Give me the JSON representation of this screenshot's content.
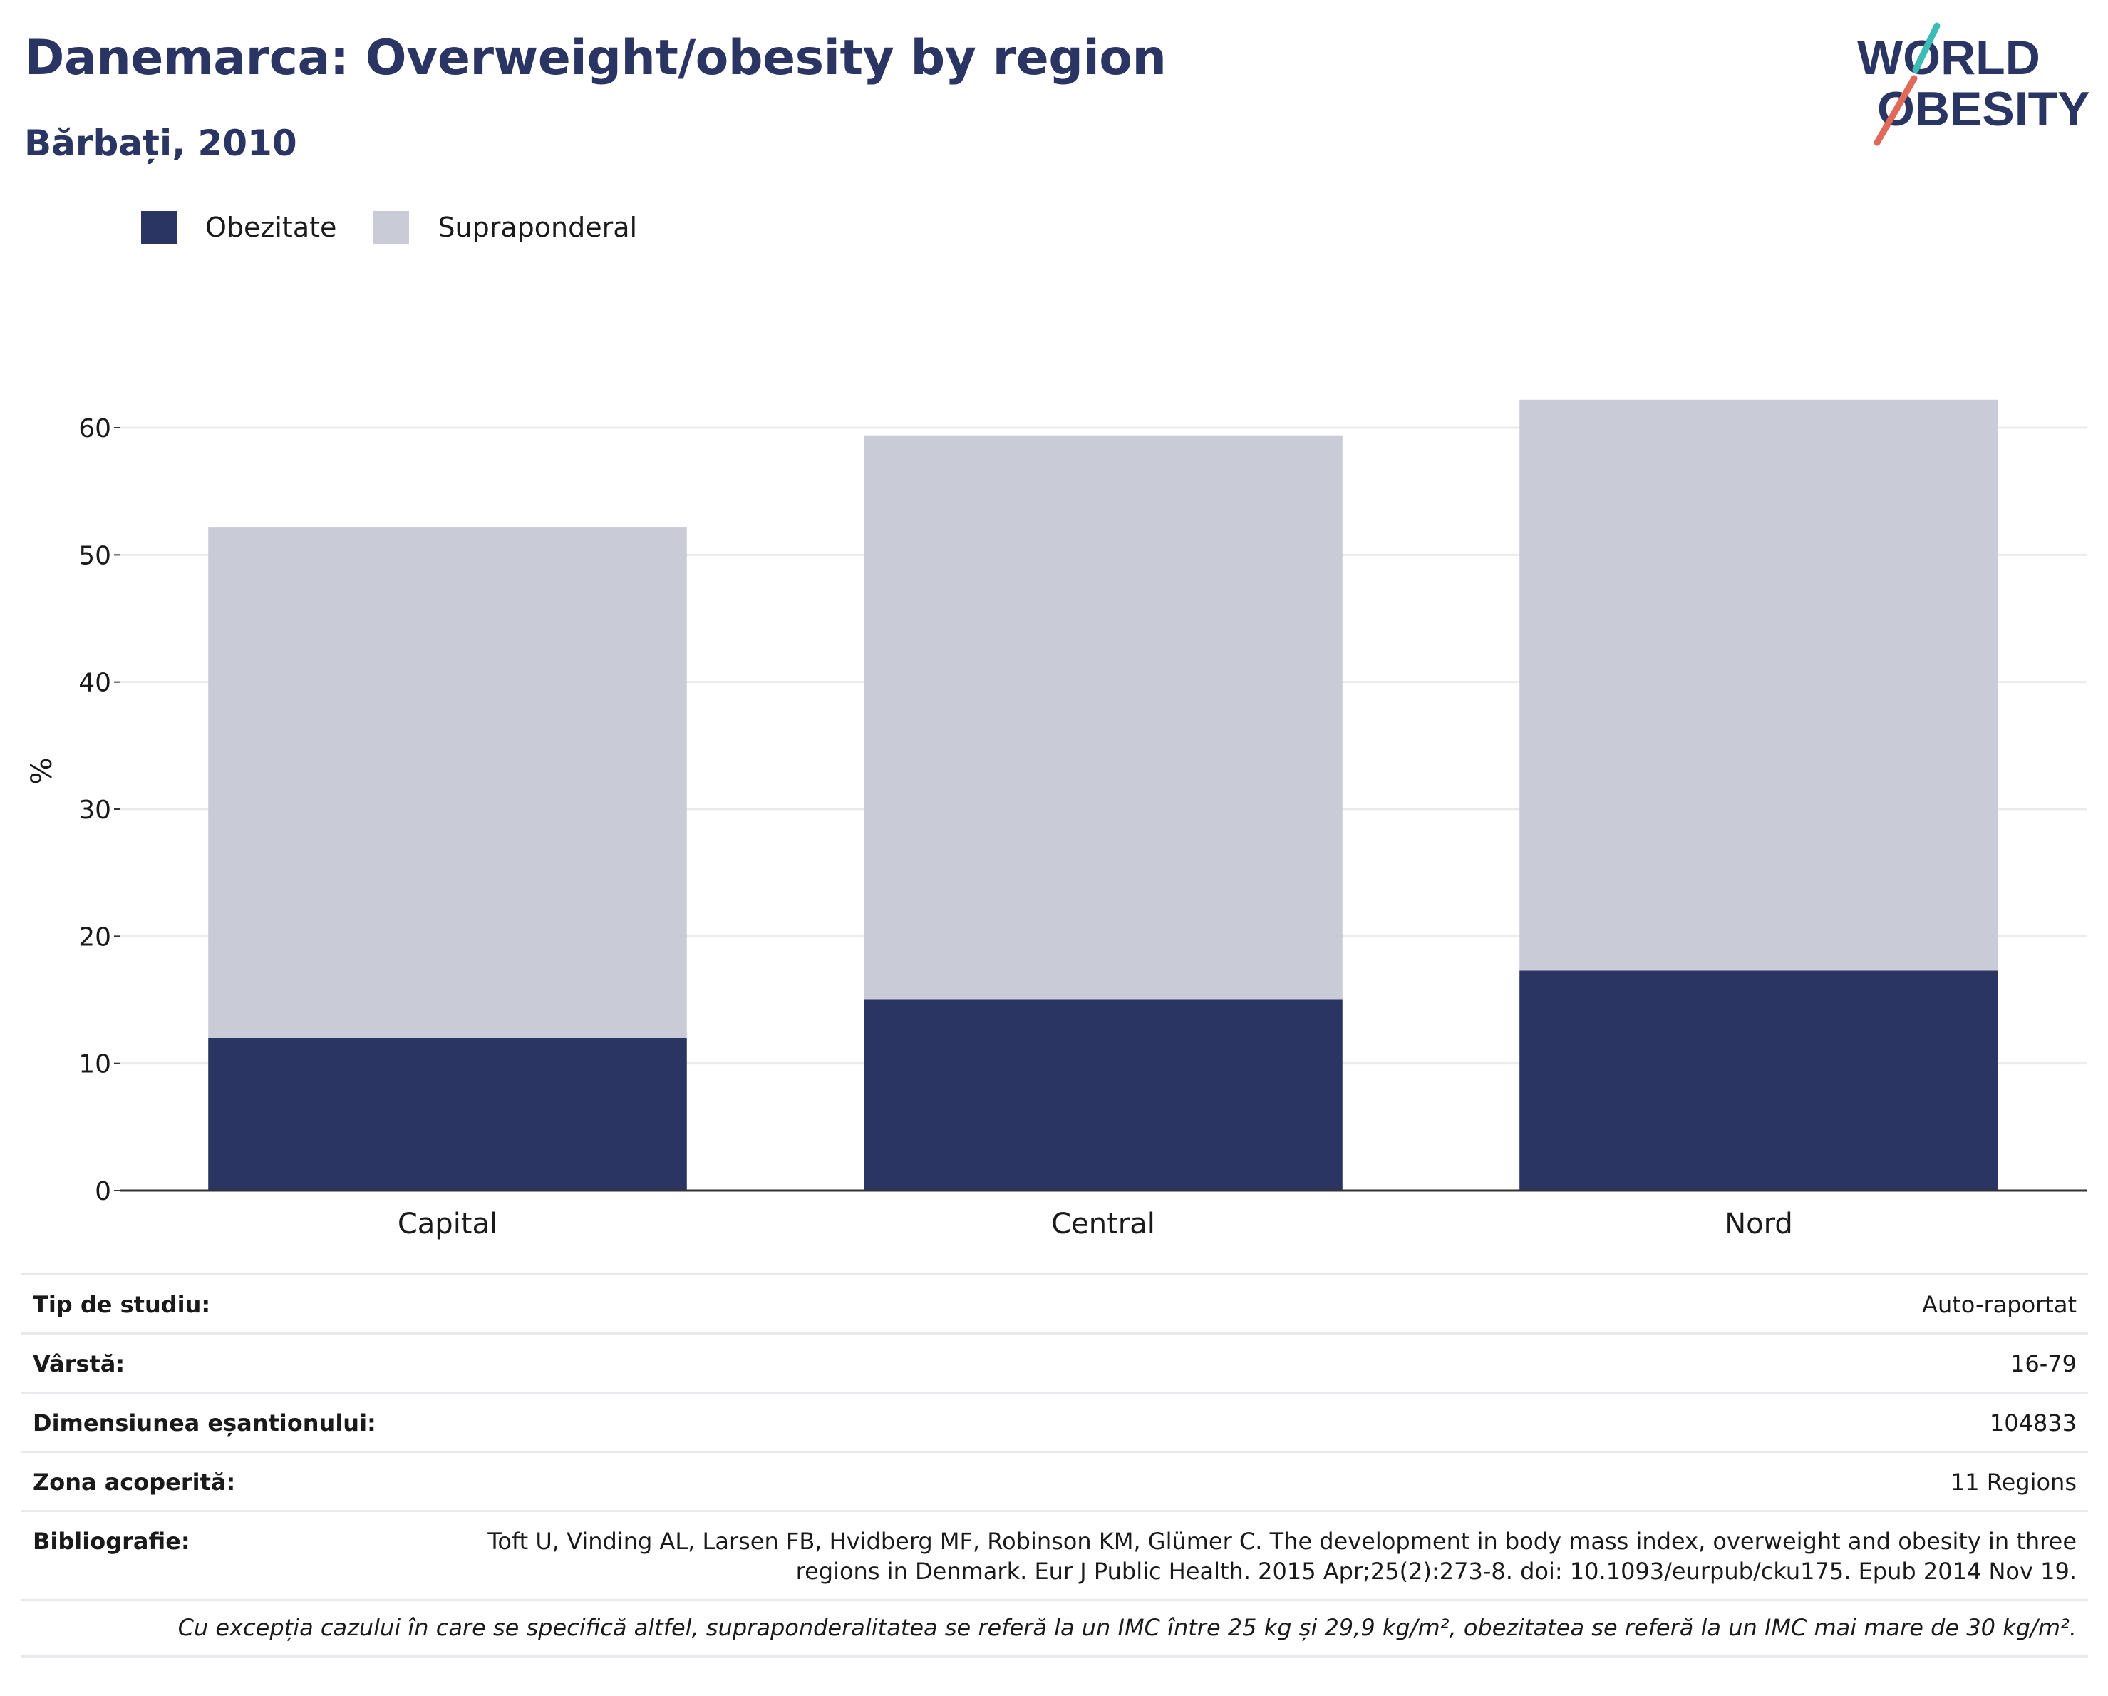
{
  "header": {
    "title": "Danemarca: Overweight/obesity by region",
    "subtitle": "Bărbați, 2010"
  },
  "logo": {
    "line1": "WORLD",
    "line2": "OBESITY"
  },
  "colors": {
    "obesity": "#2a3563",
    "overweight": "#c9cbd6",
    "title": "#2a3563",
    "gridline": "#ebebeb",
    "axis": "#333333",
    "logo_teal": "#3cbcb4",
    "logo_red": "#e0695a"
  },
  "legend": [
    {
      "label": "Obezitate",
      "color": "#2a3563"
    },
    {
      "label": "Supraponderal",
      "color": "#c9cbd6"
    }
  ],
  "chart_data": {
    "type": "bar",
    "stacked": true,
    "categories": [
      "Capital",
      "Central",
      "Nord"
    ],
    "series": [
      {
        "name": "Obezitate",
        "values": [
          12.0,
          15.0,
          17.3
        ]
      },
      {
        "name": "Supraponderal",
        "values": [
          40.2,
          44.4,
          44.9
        ]
      }
    ],
    "totals": [
      52.2,
      59.4,
      62.2
    ],
    "ylabel": "%",
    "ylim": [
      0,
      65
    ],
    "yticks": [
      0,
      10,
      20,
      30,
      40,
      50,
      60
    ],
    "grid": true,
    "legend_position": "top-left"
  },
  "info": [
    {
      "key": "Tip de studiu:",
      "value": "Auto-raportat"
    },
    {
      "key": "Vârstă:",
      "value": "16-79"
    },
    {
      "key": "Dimensiunea eșantionului:",
      "value": "104833"
    },
    {
      "key": "Zona acoperită:",
      "value": "11 Regions"
    },
    {
      "key": "Bibliografie:",
      "value": "Toft U, Vinding AL, Larsen FB, Hvidberg MF, Robinson KM, Glümer C. The development in body mass index, overweight and obesity in three regions in Denmark. Eur J Public Health. 2015 Apr;25(2):273-8. doi: 10.1093/eurpub/cku175. Epub 2014 Nov 19."
    }
  ],
  "footnote": "Cu excepția cazului în care se specifică altfel, supraponderalitatea se referă la un IMC între 25 kg și 29,9 kg/m², obezitatea se referă la un IMC mai mare de 30 kg/m²."
}
